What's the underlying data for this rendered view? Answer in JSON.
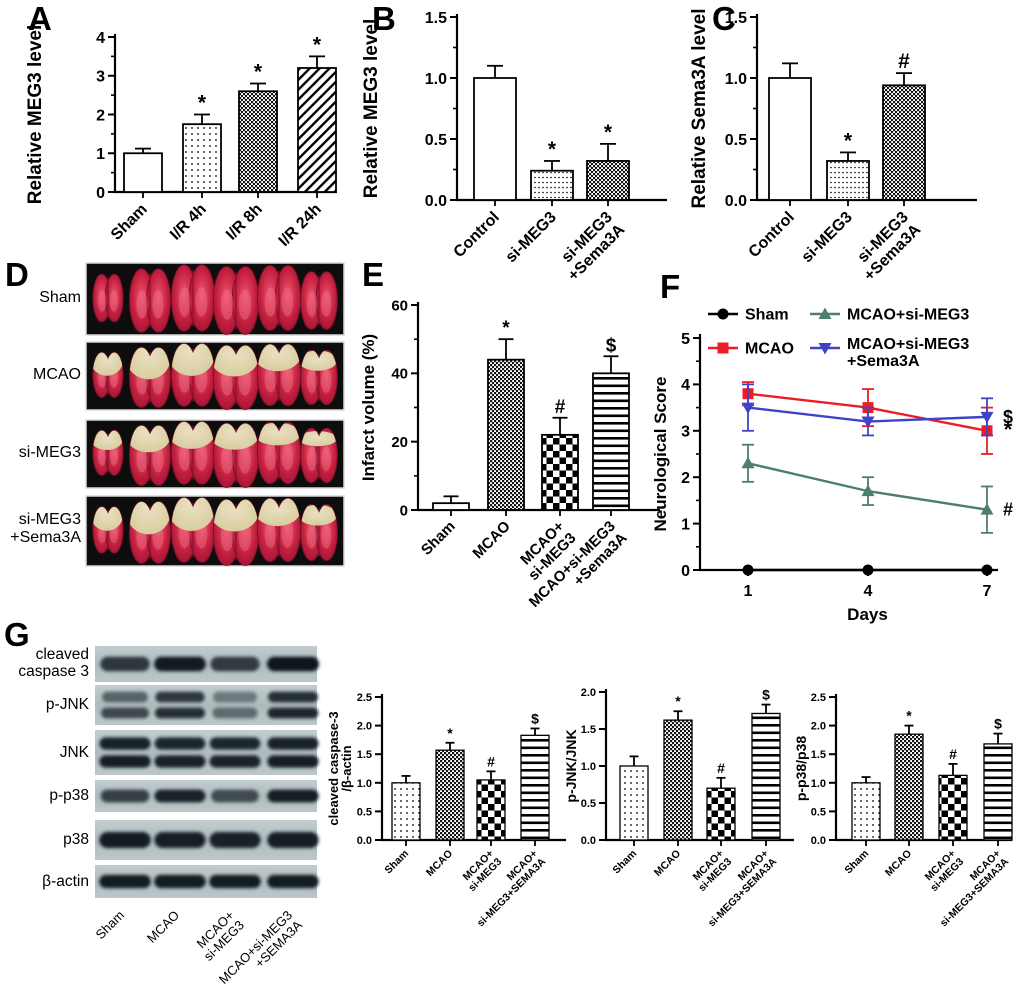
{
  "panels": {
    "A": "A",
    "B": "B",
    "C": "C",
    "D": "D",
    "E": "E",
    "F": "F",
    "G": "G"
  },
  "colors": {
    "axis": "#000000",
    "mcao_red": "#ed1c24",
    "simeg3_green": "#4e7e6c",
    "sema3a_blue": "#3f44c6",
    "brain_red": "#c31f3f",
    "infarct_pale": "#e3debb",
    "blot_bg": "#b3c0c2",
    "blot_band": "#10181a"
  },
  "chart_data": [
    {
      "id": "A",
      "type": "bar",
      "title": "",
      "ylabel": "Relative MEG3 level",
      "xlabel": "",
      "categories": [
        "Sham",
        "I/R 4h",
        "I/R 8h",
        "I/R 24h"
      ],
      "values": [
        1.0,
        1.75,
        2.6,
        3.2
      ],
      "errors": [
        0.12,
        0.25,
        0.2,
        0.3
      ],
      "symbols": [
        "",
        "*",
        "*",
        "*"
      ],
      "patterns": [
        "white",
        "dots-light",
        "dense-check",
        "diag"
      ],
      "ylim": [
        0,
        4
      ],
      "yticks": [
        0,
        1,
        2,
        3,
        4
      ],
      "ytick_labels": [
        "0",
        "1",
        "2",
        "3",
        "4"
      ]
    },
    {
      "id": "B",
      "type": "bar",
      "title": "",
      "ylabel": "Relative MEG3 level",
      "xlabel": "",
      "categories": [
        "Control",
        "si-MEG3",
        "si-MEG3\n+Sema3A"
      ],
      "values": [
        1.0,
        0.24,
        0.32
      ],
      "errors": [
        0.1,
        0.08,
        0.14
      ],
      "symbols": [
        "",
        "*",
        "*"
      ],
      "patterns": [
        "white",
        "dot-rows",
        "dense-check"
      ],
      "ylim": [
        0,
        1.5
      ],
      "yticks": [
        0,
        0.5,
        1.0,
        1.5
      ],
      "ytick_labels": [
        "0.0",
        "0.5",
        "1.0",
        "1.5"
      ]
    },
    {
      "id": "C",
      "type": "bar",
      "title": "",
      "ylabel": "Relative Sema3A level",
      "xlabel": "",
      "categories": [
        "Control",
        "si-MEG3",
        "si-MEG3\n+Sema3A"
      ],
      "values": [
        1.0,
        0.32,
        0.94
      ],
      "errors": [
        0.12,
        0.07,
        0.1
      ],
      "symbols": [
        "",
        "*",
        "#"
      ],
      "patterns": [
        "white",
        "dot-rows",
        "dense-check"
      ],
      "ylim": [
        0,
        1.5
      ],
      "yticks": [
        0,
        0.5,
        1.0,
        1.5
      ],
      "ytick_labels": [
        "0.0",
        "0.5",
        "1.0",
        "1.5"
      ]
    },
    {
      "id": "E",
      "type": "bar",
      "title": "",
      "ylabel": "Infarct volume (%)",
      "xlabel": "",
      "categories": [
        "Sham",
        "MCAO",
        "MCAO+\nsi-MEG3",
        "MCAO+si-MEG3\n+Sema3A"
      ],
      "values": [
        2,
        44,
        22,
        40
      ],
      "errors": [
        2,
        6,
        5,
        5
      ],
      "symbols": [
        "",
        "*",
        "#",
        "$"
      ],
      "patterns": [
        "white",
        "dense-check",
        "checker",
        "hlines"
      ],
      "ylim": [
        0,
        60
      ],
      "yticks": [
        0,
        20,
        40,
        60
      ],
      "ytick_labels": [
        "0",
        "20",
        "40",
        "60"
      ]
    },
    {
      "id": "F",
      "type": "line",
      "title": "",
      "ylabel": "Neurological Score",
      "xlabel": "Days",
      "x": [
        1,
        4,
        7
      ],
      "xtick_labels": [
        "1",
        "4",
        "7"
      ],
      "ylim": [
        0,
        5
      ],
      "yticks": [
        0,
        1,
        2,
        3,
        4,
        5
      ],
      "ytick_labels": [
        "0",
        "1",
        "2",
        "3",
        "4",
        "5"
      ],
      "legend_position": "top",
      "series": [
        {
          "name": "Sham",
          "color": "#000000",
          "marker": "circle",
          "values": [
            0,
            0,
            0
          ],
          "errors": [
            0,
            0,
            0
          ],
          "end_symbol": ""
        },
        {
          "name": "MCAO",
          "color": "#ed1c24",
          "marker": "square",
          "values": [
            3.8,
            3.5,
            3.0
          ],
          "errors": [
            0.25,
            0.4,
            0.5
          ],
          "end_symbol": "*"
        },
        {
          "name": "MCAO+si-MEG3",
          "color": "#4e7e6c",
          "marker": "triangle-up",
          "values": [
            2.3,
            1.7,
            1.3
          ],
          "errors": [
            0.4,
            0.3,
            0.5
          ],
          "end_symbol": "#"
        },
        {
          "name": "MCAO+si-MEG3\n+Sema3A",
          "color": "#3f44c6",
          "marker": "triangle-down",
          "values": [
            3.5,
            3.2,
            3.3
          ],
          "errors": [
            0.5,
            0.3,
            0.4
          ],
          "end_symbol": "$"
        }
      ]
    },
    {
      "id": "G1",
      "type": "bar",
      "title": "",
      "ylabel": "cleaved caspase-3\n/β-actin",
      "xlabel": "",
      "categories": [
        "Sham",
        "MCAO",
        "MCAO+\nsi-MEG3",
        "MCAO+\nsi-MEG3+SEMA3A"
      ],
      "values": [
        1.0,
        1.57,
        1.05,
        1.83
      ],
      "errors": [
        0.12,
        0.13,
        0.15,
        0.12
      ],
      "symbols": [
        "",
        "*",
        "#",
        "$"
      ],
      "patterns": [
        "dots-light",
        "dense-check",
        "checker",
        "hlines"
      ],
      "ylim": [
        0,
        2.5
      ],
      "yticks": [
        0,
        0.5,
        1.0,
        1.5,
        2.0,
        2.5
      ],
      "ytick_labels": [
        "0.0",
        "0.5",
        "1.0",
        "1.5",
        "2.0",
        "2.5"
      ]
    },
    {
      "id": "G2",
      "type": "bar",
      "title": "",
      "ylabel": "p-JNK/JNK",
      "xlabel": "",
      "categories": [
        "Sham",
        "MCAO",
        "MCAO+\nsi-MEG3",
        "MCAO+\nsi-MEG3+SEMA3A"
      ],
      "values": [
        1.0,
        1.62,
        0.7,
        1.71
      ],
      "errors": [
        0.13,
        0.12,
        0.14,
        0.12
      ],
      "symbols": [
        "",
        "*",
        "#",
        "$"
      ],
      "patterns": [
        "dots-light",
        "dense-check",
        "checker",
        "hlines"
      ],
      "ylim": [
        0,
        2.0
      ],
      "yticks": [
        0,
        0.5,
        1.0,
        1.5,
        2.0
      ],
      "ytick_labels": [
        "0.0",
        "0.5",
        "1.0",
        "1.5",
        "2.0"
      ]
    },
    {
      "id": "G3",
      "type": "bar",
      "title": "",
      "ylabel": "p-p38/p38",
      "xlabel": "",
      "categories": [
        "Sham",
        "MCAO",
        "MCAO+\nsi-MEG3",
        "MCAO+\nsi-MEG3+SEMA3A"
      ],
      "values": [
        1.0,
        1.85,
        1.13,
        1.68
      ],
      "errors": [
        0.1,
        0.15,
        0.2,
        0.18
      ],
      "symbols": [
        "",
        "*",
        "#",
        "$"
      ],
      "patterns": [
        "dots-light",
        "dense-check",
        "checker",
        "hlines"
      ],
      "ylim": [
        0,
        2.5
      ],
      "yticks": [
        0,
        0.5,
        1.0,
        1.5,
        2.0,
        2.5
      ],
      "ytick_labels": [
        "0.0",
        "0.5",
        "1.0",
        "1.5",
        "2.0",
        "2.5"
      ]
    }
  ],
  "panelD": {
    "rows": [
      {
        "label": "Sham",
        "infarct": 0
      },
      {
        "label": "MCAO",
        "infarct": 1
      },
      {
        "label": "si-MEG3",
        "infarct": 0.75
      },
      {
        "label": "si-MEG3\n+Sema3A",
        "infarct": 1
      }
    ],
    "slices_per_row": 6
  },
  "panelG": {
    "blots": [
      {
        "label": "cleaved\ncaspase 3",
        "bands": [
          [
            0.8,
            0.97,
            0.78,
            1.0
          ]
        ]
      },
      {
        "label": "p-JNK",
        "bands": [
          [
            0.55,
            0.8,
            0.42,
            0.85
          ],
          [
            0.7,
            0.85,
            0.5,
            0.9
          ]
        ]
      },
      {
        "label": "JNK",
        "bands": [
          [
            0.93,
            0.9,
            0.9,
            0.93
          ],
          [
            0.95,
            0.93,
            0.92,
            0.95
          ]
        ]
      },
      {
        "label": "p-p38",
        "bands": [
          [
            0.75,
            0.92,
            0.68,
            0.95
          ]
        ]
      },
      {
        "label": "p38",
        "bands": [
          [
            0.96,
            0.94,
            0.93,
            0.95
          ]
        ]
      },
      {
        "label": "β-actin",
        "bands": [
          [
            0.96,
            0.96,
            0.96,
            0.96
          ]
        ]
      }
    ],
    "lane_labels": [
      "Sham",
      "MCAO",
      "MCAO+\nsi-MEG3",
      "MCAO+si-MEG3\n+SEMA3A"
    ]
  }
}
